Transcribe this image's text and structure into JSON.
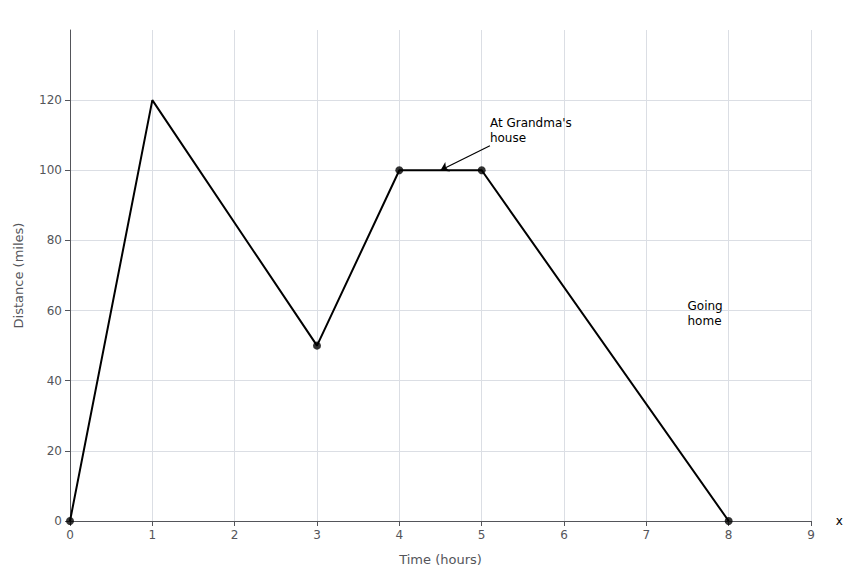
{
  "chart_data": {
    "type": "line",
    "xlabel": "Time (hours)",
    "ylabel": "Distance (miles)",
    "series": [
      {
        "type": "line",
        "x": [
          0,
          1,
          3,
          4,
          5,
          8
        ],
        "values": [
          0,
          120,
          50,
          100,
          100,
          0
        ],
        "color": "#000000"
      },
      {
        "type": "scatter",
        "x": [
          0,
          3,
          4,
          5,
          8
        ],
        "values": [
          0,
          50,
          100,
          100,
          0
        ],
        "color": "#000000",
        "marker": "circle"
      }
    ],
    "xlim": [
      0,
      9
    ],
    "ylim": [
      0,
      140
    ],
    "xticks": [
      0,
      1,
      2,
      3,
      4,
      5,
      6,
      7,
      8,
      9
    ],
    "yticks": [
      0,
      20,
      40,
      60,
      80,
      100,
      120
    ],
    "grid": true,
    "annotations": [
      {
        "text": "At Grandma's\nhouse",
        "x": 5.1,
        "y": 107,
        "arrow_to": [
          4.5,
          100
        ]
      },
      {
        "text": "Going\nhome",
        "x": 7.5,
        "y": 55
      },
      {
        "text": "x",
        "x": 9.3,
        "y": 0
      }
    ]
  }
}
